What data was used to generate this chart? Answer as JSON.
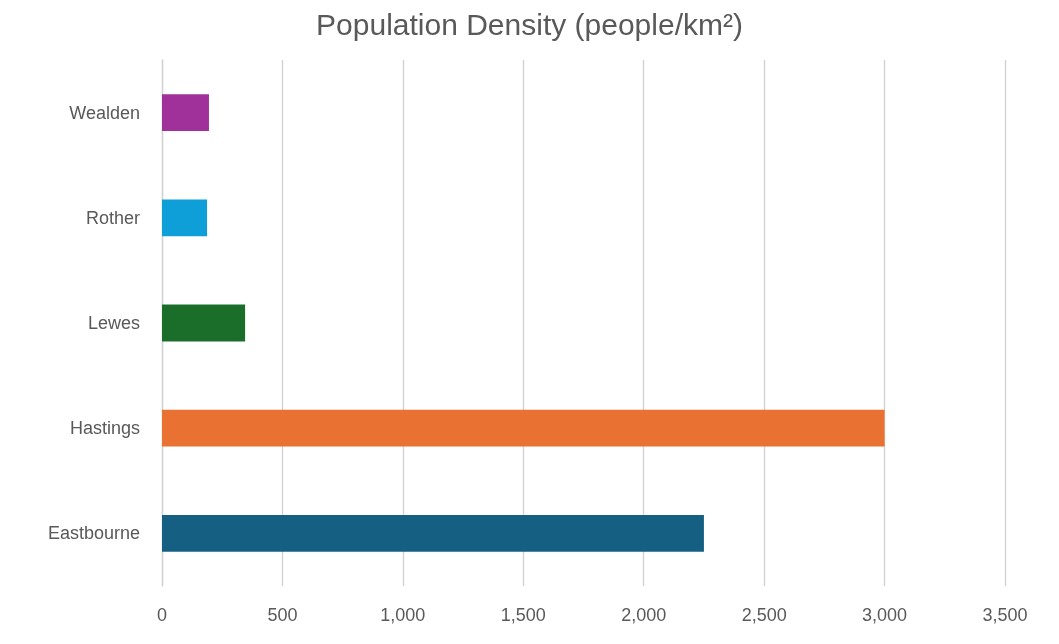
{
  "chart_data": {
    "type": "bar",
    "orientation": "horizontal",
    "title": "Population Density (people/km²)",
    "categories": [
      "Wealden",
      "Rother",
      "Lewes",
      "Hastings",
      "Eastbourne"
    ],
    "values": [
      195,
      187,
      345,
      3000,
      2250
    ],
    "colors": [
      "#a0309a",
      "#0e9ed8",
      "#1b6e2a",
      "#e97132",
      "#156082"
    ],
    "xlim": [
      0,
      3500
    ],
    "xticks": [
      {
        "value": 0,
        "label": "0"
      },
      {
        "value": 500,
        "label": "500"
      },
      {
        "value": 1000,
        "label": "1,000"
      },
      {
        "value": 1500,
        "label": "1,500"
      },
      {
        "value": 2000,
        "label": "2,000"
      },
      {
        "value": 2500,
        "label": "2,500"
      },
      {
        "value": 3000,
        "label": "3,000"
      },
      {
        "value": 3500,
        "label": "3,500"
      }
    ],
    "grid": "x"
  }
}
